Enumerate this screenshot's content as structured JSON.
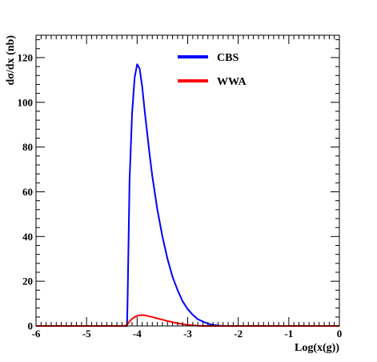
{
  "chart_data": {
    "type": "line",
    "xlabel": "Log(x(g))",
    "ylabel": "dσ/dx (nb)",
    "xlim": [
      -6,
      0
    ],
    "ylim": [
      0,
      130
    ],
    "xticks": [
      -6,
      -5,
      -4,
      -3,
      -2,
      -1,
      0
    ],
    "xtick_labels": [
      "-6",
      "-5",
      "-4",
      "-3",
      "-2",
      "-1",
      "0"
    ],
    "yticks": [
      0,
      20,
      40,
      60,
      80,
      100,
      120
    ],
    "ytick_labels": [
      "0",
      "20",
      "40",
      "60",
      "80",
      "100",
      "120"
    ],
    "grid": false,
    "legend_placement": "top-center",
    "series": [
      {
        "name": "CBS",
        "color": "#0000ff",
        "x": [
          -6.0,
          -4.2,
          -4.19,
          -4.15,
          -4.1,
          -4.05,
          -4.0,
          -3.95,
          -3.9,
          -3.85,
          -3.8,
          -3.75,
          -3.7,
          -3.6,
          -3.5,
          -3.4,
          -3.3,
          -3.2,
          -3.1,
          -3.0,
          -2.9,
          -2.8,
          -2.7,
          -2.6,
          -2.5,
          -2.4,
          -2.3,
          0.0
        ],
        "y": [
          0,
          0,
          10,
          65,
          95,
          111,
          117,
          115,
          107,
          96,
          86,
          76,
          67,
          52,
          40,
          30,
          22,
          16,
          11,
          7.5,
          5,
          3,
          2,
          1,
          0.5,
          0.2,
          0,
          0
        ]
      },
      {
        "name": "WWA",
        "color": "#ff0000",
        "x": [
          -6.0,
          -4.25,
          -4.2,
          -4.15,
          -4.1,
          -4.05,
          -4.0,
          -3.95,
          -3.9,
          -3.85,
          -3.8,
          -3.7,
          -3.6,
          -3.5,
          -3.4,
          -3.3,
          -3.2,
          -3.1,
          -3.0,
          -2.9,
          -2.8,
          -2.7,
          0.0
        ],
        "y": [
          0,
          0,
          0.5,
          2,
          3.2,
          4,
          4.5,
          4.8,
          4.9,
          4.8,
          4.5,
          4.0,
          3.4,
          2.8,
          2.2,
          1.7,
          1.2,
          0.8,
          0.5,
          0.3,
          0.1,
          0,
          0
        ]
      }
    ]
  }
}
